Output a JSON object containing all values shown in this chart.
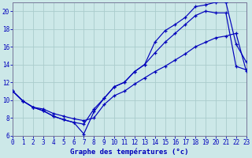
{
  "title": "Graphe des températures (°c)",
  "bg_color": "#cce8e8",
  "grid_color": "#aacccc",
  "line_color": "#0000bb",
  "x_min": 0,
  "x_max": 23,
  "y_min": 6,
  "y_max": 21,
  "line1_x": [
    0,
    1,
    2,
    3,
    4,
    5,
    6,
    7,
    8,
    9,
    10,
    11,
    12,
    13,
    14,
    15,
    16,
    17,
    18,
    19,
    20,
    21,
    22,
    23
  ],
  "line1_y": [
    11.0,
    9.9,
    9.2,
    8.8,
    8.2,
    7.8,
    7.5,
    6.2,
    8.7,
    10.2,
    11.5,
    12.0,
    13.2,
    14.0,
    16.5,
    17.8,
    18.5,
    19.3,
    20.5,
    20.7,
    21.0,
    21.0,
    16.3,
    14.3
  ],
  "line2_x": [
    0,
    1,
    2,
    3,
    4,
    5,
    6,
    7,
    8,
    9,
    10,
    11,
    12,
    13,
    14,
    15,
    16,
    17,
    18,
    19,
    20,
    21,
    22,
    23
  ],
  "line2_y": [
    11.0,
    9.9,
    9.2,
    8.8,
    8.2,
    7.8,
    7.5,
    7.3,
    9.0,
    10.2,
    11.5,
    12.0,
    13.2,
    14.0,
    15.3,
    16.5,
    17.5,
    18.5,
    19.5,
    20.0,
    19.8,
    19.8,
    13.8,
    13.4
  ],
  "line3_x": [
    0,
    1,
    2,
    3,
    4,
    5,
    6,
    7,
    8,
    9,
    10,
    11,
    12,
    13,
    14,
    15,
    16,
    17,
    18,
    19,
    20,
    21,
    22,
    23
  ],
  "line3_y": [
    11.0,
    9.9,
    9.2,
    9.0,
    8.5,
    8.2,
    7.9,
    7.7,
    8.0,
    9.5,
    10.5,
    11.0,
    11.8,
    12.5,
    13.2,
    13.8,
    14.5,
    15.2,
    16.0,
    16.5,
    17.0,
    17.2,
    17.5,
    13.3
  ],
  "x_ticks": [
    0,
    1,
    2,
    3,
    4,
    5,
    6,
    7,
    8,
    9,
    10,
    11,
    12,
    13,
    14,
    15,
    16,
    17,
    18,
    19,
    20,
    21,
    22,
    23
  ],
  "y_ticks": [
    6,
    8,
    10,
    12,
    14,
    16,
    18,
    20
  ],
  "xlabel_fontsize": 6.5,
  "tick_fontsize": 5.5
}
